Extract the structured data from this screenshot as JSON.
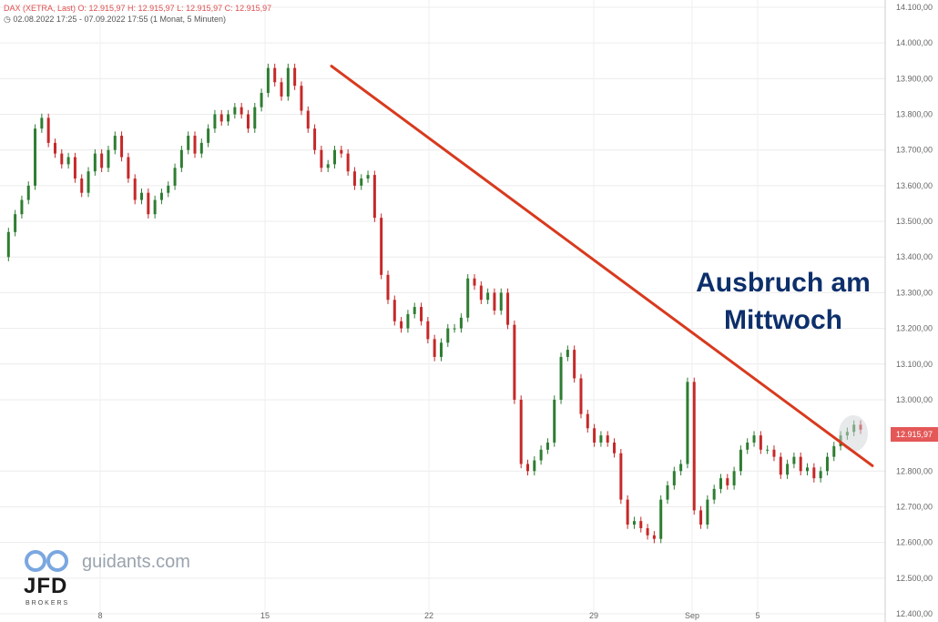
{
  "header": {
    "line1": "DAX (XETRA, Last)  O: 12.915,97  H: 12.915,97  L: 12.915,97  C: 12.915,97",
    "line2": "02.08.2022 17:25 - 07.09.2022 17:55   (1 Monat, 5 Minuten)"
  },
  "annotation": {
    "line1": "Ausbruch am",
    "line2": "Mittwoch"
  },
  "watermark": {
    "site": "guidants.com",
    "brand": "JFD",
    "sub": "BROKERS"
  },
  "last_price_label": "12.915,97",
  "colors": {
    "up": "#2e7d32",
    "down": "#c62828",
    "trendline": "#d83a1e",
    "annotation": "#0d2f6b",
    "last_badge": "#e45858"
  },
  "chart_data": {
    "type": "line",
    "instrument": "DAX (XETRA, Last)",
    "y_ticks": [
      "14.100,00",
      "14.000,00",
      "13.900,00",
      "13.800,00",
      "13.700,00",
      "13.600,00",
      "13.500,00",
      "13.400,00",
      "13.300,00",
      "13.200,00",
      "13.100,00",
      "13.000,00",
      "12.800,00",
      "12.700,00",
      "12.600,00",
      "12.500,00",
      "12.400,00"
    ],
    "x_ticks": [
      "8",
      "15",
      "22",
      "29",
      "Sep",
      "5"
    ],
    "ylim": [
      12400,
      14100
    ],
    "series": [
      {
        "x": [
          0,
          1,
          2,
          3,
          4,
          5,
          6,
          7,
          8,
          9,
          10,
          11,
          12,
          13,
          14,
          15,
          16,
          17,
          18,
          19,
          20,
          21,
          22,
          23,
          24,
          25,
          26,
          27,
          28,
          29,
          30,
          31,
          32,
          33,
          34,
          35,
          36,
          37,
          38,
          39,
          40,
          41,
          42,
          43,
          44,
          45,
          46,
          47,
          48,
          49,
          50,
          51,
          52,
          53,
          54,
          55,
          56,
          57,
          58,
          59,
          60,
          61,
          62,
          63,
          64,
          65,
          66,
          67,
          68,
          69,
          70,
          71,
          72,
          73,
          74,
          75,
          76,
          77,
          78,
          79,
          80,
          81,
          82,
          83,
          84,
          85,
          86,
          87,
          88,
          89,
          90,
          91,
          92,
          93,
          94,
          95,
          96,
          97,
          98,
          99,
          100,
          101,
          102,
          103,
          104,
          105,
          106,
          107,
          108,
          109,
          110,
          111,
          112,
          113,
          114,
          115,
          116,
          117,
          118,
          119,
          120,
          121,
          122,
          123,
          124,
          125,
          126,
          127,
          128,
          129
        ],
        "values": [
          13400,
          13470,
          13520,
          13560,
          13600,
          13760,
          13790,
          13720,
          13690,
          13660,
          13680,
          13620,
          13580,
          13640,
          13690,
          13650,
          13700,
          13740,
          13680,
          13620,
          13560,
          13580,
          13520,
          13560,
          13580,
          13600,
          13650,
          13700,
          13740,
          13690,
          13720,
          13760,
          13800,
          13780,
          13800,
          13820,
          13800,
          13760,
          13820,
          13860,
          13930,
          13890,
          13850,
          13930,
          13880,
          13810,
          13760,
          13700,
          13650,
          13660,
          13700,
          13690,
          13640,
          13600,
          13620,
          13630,
          13510,
          13350,
          13280,
          13220,
          13200,
          13240,
          13260,
          13220,
          13170,
          13120,
          13160,
          13200,
          13200,
          13230,
          13340,
          13320,
          13280,
          13300,
          13250,
          13300,
          13210,
          13000,
          12820,
          12800,
          12830,
          12860,
          12880,
          13000,
          13120,
          13140,
          13060,
          12960,
          12920,
          12880,
          12900,
          12880,
          12850,
          12720,
          12650,
          12660,
          12640,
          12620,
          12610,
          12720,
          12760,
          12800,
          12820,
          13050,
          12690,
          12650,
          12720,
          12750,
          12780,
          12760,
          12800,
          12860,
          12880,
          12900,
          12860,
          12860,
          12840,
          12790,
          12820,
          12840,
          12800,
          12810,
          12780,
          12800,
          12840,
          12870,
          12900,
          12910,
          12930,
          12916
        ]
      }
    ],
    "trendline": {
      "x": [
        48,
        129
      ],
      "values": [
        13935,
        12815
      ]
    }
  }
}
